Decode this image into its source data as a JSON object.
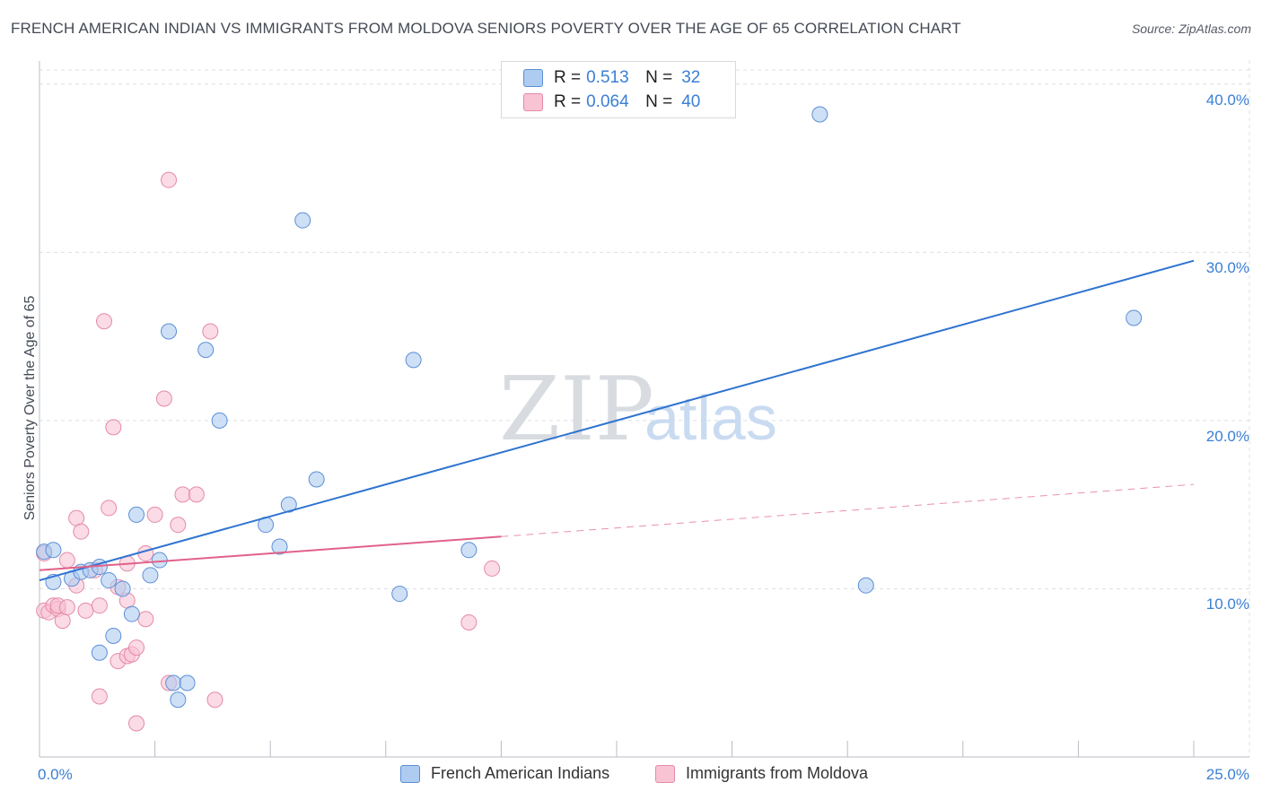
{
  "header": {
    "title": "FRENCH AMERICAN INDIAN VS IMMIGRANTS FROM MOLDOVA SENIORS POVERTY OVER THE AGE OF 65 CORRELATION CHART",
    "source": "Source: ZipAtlas.com"
  },
  "watermark": {
    "zip": "ZIP",
    "atlas": "atlas"
  },
  "legend": {
    "rows": [
      {
        "r_label": "R =",
        "r_value": "0.513",
        "n_label": "N =",
        "n_value": "32"
      },
      {
        "r_label": "R =",
        "r_value": "0.064",
        "n_label": "N =",
        "n_value": "40"
      }
    ]
  },
  "bottom_legend": {
    "series_a": "French American Indians",
    "series_b": "Immigrants from Moldova"
  },
  "axes": {
    "x_min_label": "0.0%",
    "x_max_label": "25.0%",
    "y_ticks": [
      "10.0%",
      "20.0%",
      "30.0%",
      "40.0%"
    ]
  },
  "colors": {
    "blue_fill": "#aecbf0",
    "blue_stroke": "#5b8fd6",
    "blue_line": "#2f74d0",
    "pink_fill": "#f8c3d3",
    "pink_stroke": "#e58aa8",
    "pink_line": "#e0628a",
    "grid": "#dcdfe4",
    "tick_label": "#3a7fd5"
  },
  "chart_data": {
    "type": "scatter",
    "title": "FRENCH AMERICAN INDIAN VS IMMIGRANTS FROM MOLDOVA SENIORS POVERTY OVER THE AGE OF 65 CORRELATION CHART",
    "xlabel": "",
    "ylabel": "Seniors Poverty Over the Age of 65",
    "xlim": [
      0,
      25
    ],
    "ylim": [
      0,
      41
    ],
    "y_gridlines": [
      10,
      20,
      30,
      40
    ],
    "series": [
      {
        "name": "French American Indians",
        "R": 0.513,
        "N": 32,
        "trend": {
          "x0": 0,
          "y0": 10.5,
          "x1": 25,
          "y1": 29.5,
          "style": "solid"
        },
        "points": [
          [
            0.1,
            12.2
          ],
          [
            0.3,
            12.3
          ],
          [
            0.3,
            10.4
          ],
          [
            0.7,
            10.6
          ],
          [
            0.9,
            11.0
          ],
          [
            1.1,
            11.1
          ],
          [
            1.3,
            6.2
          ],
          [
            1.3,
            11.3
          ],
          [
            1.5,
            10.5
          ],
          [
            1.6,
            7.2
          ],
          [
            1.8,
            10.0
          ],
          [
            2.1,
            14.4
          ],
          [
            2.0,
            8.5
          ],
          [
            2.4,
            10.8
          ],
          [
            2.6,
            11.7
          ],
          [
            2.8,
            25.3
          ],
          [
            2.9,
            4.4
          ],
          [
            3.0,
            3.4
          ],
          [
            3.2,
            4.4
          ],
          [
            3.6,
            24.2
          ],
          [
            3.9,
            20.0
          ],
          [
            4.9,
            13.8
          ],
          [
            5.2,
            12.5
          ],
          [
            5.4,
            15.0
          ],
          [
            5.7,
            31.9
          ],
          [
            6.0,
            16.5
          ],
          [
            7.8,
            9.7
          ],
          [
            8.1,
            23.6
          ],
          [
            9.3,
            12.3
          ],
          [
            16.9,
            38.2
          ],
          [
            17.9,
            10.2
          ],
          [
            23.7,
            26.1
          ]
        ]
      },
      {
        "name": "Immigrants from Moldova",
        "R": 0.064,
        "N": 40,
        "trend": {
          "x0": 0,
          "y0": 11.1,
          "x1": 10,
          "y1": 13.1,
          "style": "solid",
          "dashed_to": {
            "x": 25,
            "y": 16.2
          }
        },
        "points": [
          [
            0.1,
            12.1
          ],
          [
            0.1,
            8.7
          ],
          [
            0.2,
            8.6
          ],
          [
            0.3,
            9.0
          ],
          [
            0.4,
            8.8
          ],
          [
            0.4,
            9.0
          ],
          [
            0.5,
            8.1
          ],
          [
            0.6,
            8.9
          ],
          [
            0.8,
            10.2
          ],
          [
            0.8,
            14.2
          ],
          [
            0.9,
            13.4
          ],
          [
            1.0,
            8.7
          ],
          [
            1.2,
            11.1
          ],
          [
            1.3,
            9.0
          ],
          [
            1.3,
            3.6
          ],
          [
            1.4,
            25.9
          ],
          [
            1.5,
            14.8
          ],
          [
            1.6,
            19.6
          ],
          [
            1.7,
            10.1
          ],
          [
            1.7,
            5.7
          ],
          [
            1.9,
            6.0
          ],
          [
            1.9,
            11.5
          ],
          [
            1.9,
            9.3
          ],
          [
            2.0,
            6.1
          ],
          [
            2.1,
            6.5
          ],
          [
            2.1,
            2.0
          ],
          [
            2.3,
            8.2
          ],
          [
            2.3,
            12.1
          ],
          [
            2.5,
            14.4
          ],
          [
            2.7,
            21.3
          ],
          [
            2.8,
            4.4
          ],
          [
            2.8,
            34.3
          ],
          [
            3.0,
            13.8
          ],
          [
            3.1,
            15.6
          ],
          [
            3.4,
            15.6
          ],
          [
            3.7,
            25.3
          ],
          [
            3.8,
            3.4
          ],
          [
            9.3,
            8.0
          ],
          [
            9.8,
            11.2
          ],
          [
            0.6,
            11.7
          ]
        ]
      }
    ]
  }
}
